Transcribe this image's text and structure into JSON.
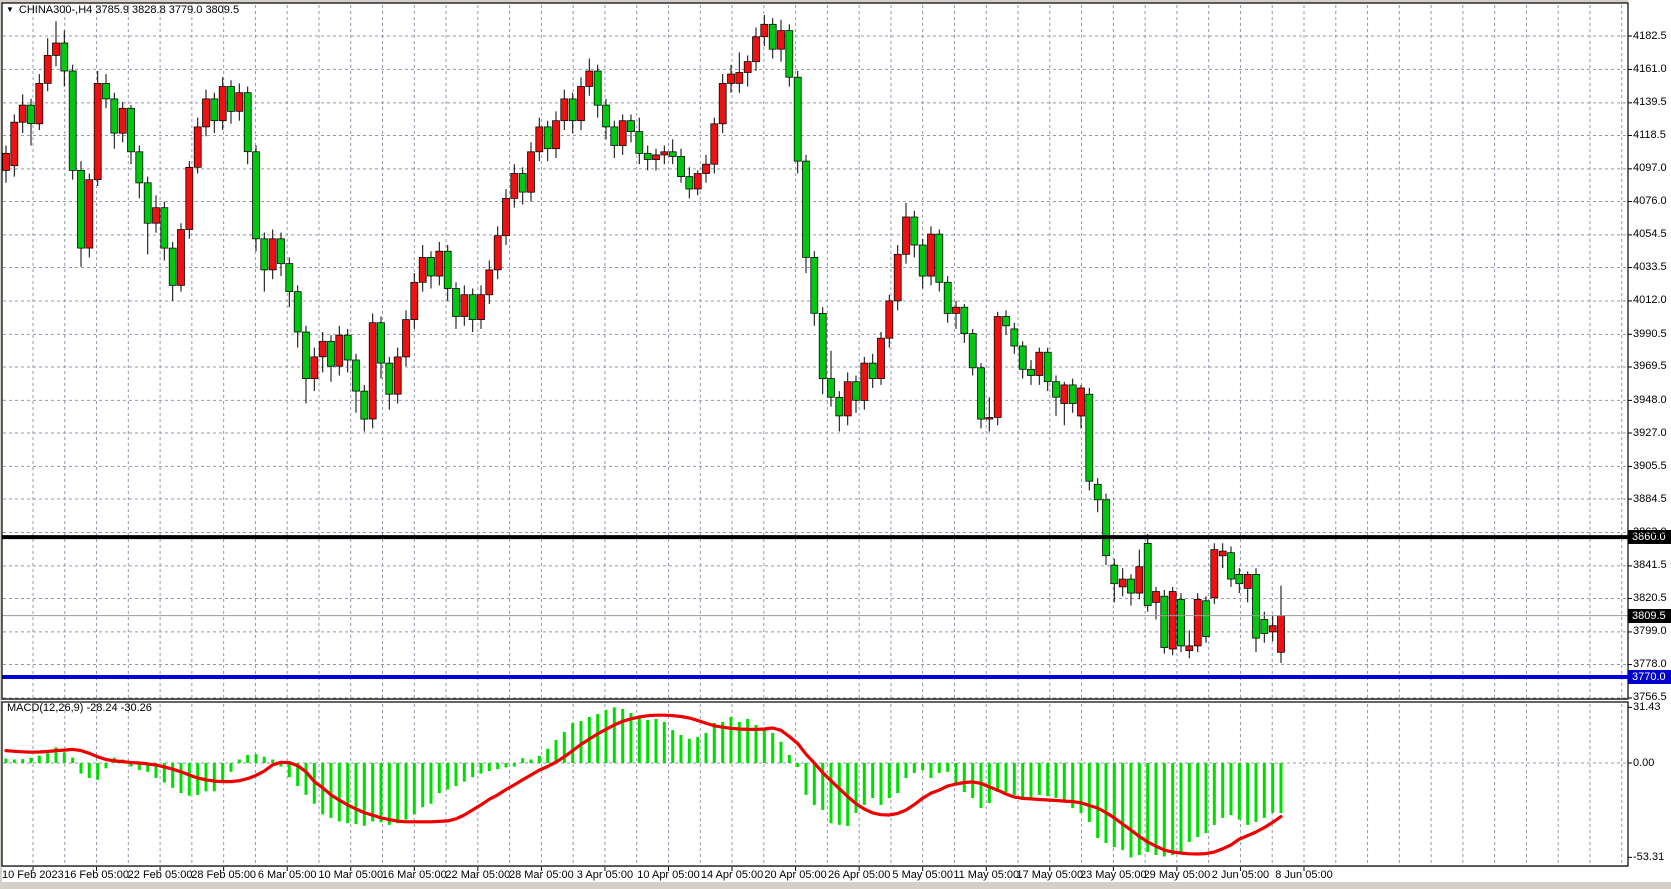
{
  "chart": {
    "title_text": "CHINA300-,H4  3785.9 3828.8 3779.0 3809.5",
    "symbol": "CHINA300-",
    "timeframe": "H4",
    "ohlc_display": {
      "open": "3785.9",
      "high": "3828.8",
      "low": "3779.0",
      "close": "3809.5"
    }
  },
  "macd": {
    "label": "MACD(12,26,9) -28.24 -30.26",
    "name": "MACD",
    "params": "12,26,9",
    "value": "-28.24",
    "signal": "-30.26",
    "scale_labels": {
      "max": "31.43",
      "zero": "0.00",
      "min": "-53.31"
    }
  },
  "levels": [
    {
      "label": "3860.0",
      "price": 3860.0,
      "line_color": "#000000",
      "badge_color": "#000000",
      "type": "horizontal-line"
    },
    {
      "label": "3809.5",
      "price": 3809.5,
      "line_color": "#9a9a9a",
      "badge_color": "#000000",
      "type": "bid-price-line"
    },
    {
      "label": "3770.0",
      "price": 3770.0,
      "line_color": "#0000d8",
      "badge_color": "#0000c8",
      "type": "horizontal-line"
    }
  ],
  "colors": {
    "background": "#ffffff",
    "chrome": "#d4d0c8",
    "grid": "#9099ad",
    "bull_candle": "#ed1111",
    "bear_candle": "#00c711",
    "wick": "#000000",
    "macd_histogram": "#00dd00",
    "macd_signal": "#ee0000",
    "border": "#000000",
    "text": "#000000"
  },
  "chart_data": {
    "type": "candlestick",
    "title": "CHINA300-,H4",
    "note_color_convention": "red = bullish, green = bearish",
    "grid": true,
    "price_axis_ticks": [
      4182.5,
      4161.0,
      4139.5,
      4118.5,
      4097.0,
      4076.0,
      4054.5,
      4033.5,
      4012.0,
      3990.5,
      3969.5,
      3948.0,
      3927.0,
      3905.5,
      3884.5,
      3863.0,
      3841.5,
      3820.5,
      3799.0,
      3778.0,
      3756.5
    ],
    "ylim_price": [
      3756.5,
      4182.5
    ],
    "time_axis_ticks": [
      "10 Feb 2023",
      "16 Feb 05:00",
      "22 Feb 05:00",
      "28 Feb 05:00",
      "6 Mar 05:00",
      "10 Mar 05:00",
      "16 Mar 05:00",
      "22 Mar 05:00",
      "28 Mar 05:00",
      "3 Apr 05:00",
      "10 Apr 05:00",
      "14 Apr 05:00",
      "20 Apr 05:00",
      "26 Apr 05:00",
      "5 May 05:00",
      "11 May 05:00",
      "17 May 05:00",
      "23 May 05:00",
      "29 May 05:00",
      "2 Jun 05:00",
      "8 Jun 05:00"
    ],
    "candles_ohlc": [
      [
        4096,
        4112,
        4088,
        4107
      ],
      [
        4099,
        4132,
        4092,
        4127
      ],
      [
        4127,
        4145,
        4120,
        4138
      ],
      [
        4138,
        4142,
        4112,
        4126
      ],
      [
        4126,
        4158,
        4122,
        4152
      ],
      [
        4152,
        4181,
        4147,
        4170
      ],
      [
        4170,
        4192,
        4163,
        4178
      ],
      [
        4178,
        4186,
        4150,
        4160
      ],
      [
        4160,
        4164,
        4090,
        4096
      ],
      [
        4096,
        4102,
        4034,
        4046
      ],
      [
        4046,
        4094,
        4040,
        4090
      ],
      [
        4090,
        4160,
        4086,
        4152
      ],
      [
        4152,
        4158,
        4136,
        4142
      ],
      [
        4142,
        4146,
        4110,
        4120
      ],
      [
        4120,
        4140,
        4114,
        4136
      ],
      [
        4136,
        4138,
        4100,
        4108
      ],
      [
        4108,
        4112,
        4078,
        4088
      ],
      [
        4088,
        4092,
        4042,
        4062
      ],
      [
        4062,
        4080,
        4056,
        4072
      ],
      [
        4072,
        4076,
        4038,
        4046
      ],
      [
        4046,
        4050,
        4012,
        4022
      ],
      [
        4022,
        4062,
        4018,
        4058
      ],
      [
        4058,
        4102,
        4052,
        4098
      ],
      [
        4098,
        4130,
        4094,
        4124
      ],
      [
        4124,
        4148,
        4118,
        4142
      ],
      [
        4142,
        4146,
        4120,
        4128
      ],
      [
        4128,
        4156,
        4122,
        4150
      ],
      [
        4150,
        4154,
        4126,
        4134
      ],
      [
        4134,
        4152,
        4128,
        4146
      ],
      [
        4146,
        4150,
        4100,
        4108
      ],
      [
        4108,
        4112,
        4044,
        4052
      ],
      [
        4052,
        4056,
        4018,
        4032
      ],
      [
        4032,
        4058,
        4026,
        4052
      ],
      [
        4052,
        4056,
        4028,
        4036
      ],
      [
        4036,
        4040,
        4008,
        4018
      ],
      [
        4018,
        4022,
        3982,
        3992
      ],
      [
        3992,
        3996,
        3946,
        3962
      ],
      [
        3962,
        3982,
        3954,
        3976
      ],
      [
        3976,
        3992,
        3966,
        3986
      ],
      [
        3986,
        3990,
        3960,
        3970
      ],
      [
        3970,
        3996,
        3964,
        3990
      ],
      [
        3990,
        3994,
        3966,
        3974
      ],
      [
        3974,
        3978,
        3940,
        3954
      ],
      [
        3954,
        3958,
        3928,
        3936
      ],
      [
        3936,
        4004,
        3930,
        3998
      ],
      [
        3998,
        4002,
        3962,
        3972
      ],
      [
        3972,
        3976,
        3942,
        3952
      ],
      [
        3952,
        3982,
        3946,
        3976
      ],
      [
        3976,
        4006,
        3970,
        4000
      ],
      [
        4000,
        4030,
        3994,
        4024
      ],
      [
        4024,
        4048,
        4018,
        4040
      ],
      [
        4040,
        4044,
        4020,
        4028
      ],
      [
        4028,
        4050,
        4022,
        4044
      ],
      [
        4044,
        4048,
        4012,
        4020
      ],
      [
        4020,
        4024,
        3994,
        4002
      ],
      [
        4002,
        4022,
        3996,
        4016
      ],
      [
        4016,
        4020,
        3992,
        4000
      ],
      [
        4000,
        4022,
        3994,
        4016
      ],
      [
        4016,
        4038,
        4010,
        4032
      ],
      [
        4032,
        4060,
        4026,
        4054
      ],
      [
        4054,
        4084,
        4048,
        4078
      ],
      [
        4078,
        4100,
        4072,
        4094
      ],
      [
        4094,
        4098,
        4074,
        4082
      ],
      [
        4082,
        4114,
        4076,
        4108
      ],
      [
        4108,
        4130,
        4102,
        4124
      ],
      [
        4124,
        4128,
        4102,
        4110
      ],
      [
        4110,
        4134,
        4104,
        4128
      ],
      [
        4128,
        4148,
        4122,
        4142
      ],
      [
        4142,
        4146,
        4120,
        4128
      ],
      [
        4128,
        4156,
        4122,
        4150
      ],
      [
        4150,
        4168,
        4144,
        4160
      ],
      [
        4160,
        4164,
        4130,
        4138
      ],
      [
        4138,
        4142,
        4116,
        4124
      ],
      [
        4124,
        4128,
        4104,
        4112
      ],
      [
        4112,
        4132,
        4106,
        4128
      ],
      [
        4128,
        4132,
        4114,
        4121
      ],
      [
        4121,
        4130,
        4100,
        4107
      ],
      [
        4107,
        4112,
        4096,
        4103
      ],
      [
        4103,
        4110,
        4096,
        4106
      ],
      [
        4106,
        4112,
        4100,
        4108
      ],
      [
        4108,
        4116,
        4100,
        4105
      ],
      [
        4105,
        4110,
        4088,
        4092
      ],
      [
        4092,
        4098,
        4078,
        4084
      ],
      [
        4084,
        4096,
        4080,
        4094
      ],
      [
        4094,
        4106,
        4088,
        4100
      ],
      [
        4100,
        4130,
        4094,
        4126
      ],
      [
        4126,
        4158,
        4120,
        4152
      ],
      [
        4152,
        4164,
        4146,
        4158
      ],
      [
        4152,
        4172,
        4146,
        4159
      ],
      [
        4159,
        4170,
        4150,
        4166
      ],
      [
        4166,
        4188,
        4160,
        4182
      ],
      [
        4182,
        4196,
        4176,
        4190
      ],
      [
        4190,
        4194,
        4168,
        4174
      ],
      [
        4174,
        4193,
        4166,
        4186
      ],
      [
        4186,
        4190,
        4150,
        4156
      ],
      [
        4156,
        4160,
        4094,
        4102
      ],
      [
        4102,
        4106,
        4030,
        4040
      ],
      [
        4040,
        4044,
        3996,
        4004
      ],
      [
        4004,
        4008,
        3952,
        3962
      ],
      [
        3962,
        3980,
        3944,
        3950
      ],
      [
        3950,
        3954,
        3928,
        3938
      ],
      [
        3938,
        3966,
        3932,
        3960
      ],
      [
        3960,
        3964,
        3940,
        3948
      ],
      [
        3948,
        3976,
        3942,
        3972
      ],
      [
        3972,
        3978,
        3956,
        3962
      ],
      [
        3962,
        3992,
        3958,
        3988
      ],
      [
        3988,
        4016,
        3982,
        4012
      ],
      [
        4012,
        4048,
        4006,
        4042
      ],
      [
        4042,
        4075,
        4036,
        4066
      ],
      [
        4066,
        4070,
        4040,
        4048
      ],
      [
        4048,
        4052,
        4020,
        4028
      ],
      [
        4028,
        4060,
        4022,
        4055
      ],
      [
        4055,
        4058,
        4018,
        4024
      ],
      [
        4024,
        4028,
        3998,
        4004
      ],
      [
        4004,
        4012,
        3994,
        4008
      ],
      [
        4008,
        4010,
        3985,
        3991
      ],
      [
        3991,
        3994,
        3964,
        3969
      ],
      [
        3969,
        3972,
        3930,
        3936
      ],
      [
        3936,
        3950,
        3928,
        3937
      ],
      [
        3937,
        4005,
        3932,
        4002
      ],
      [
        4002,
        4006,
        3990,
        3996
      ],
      [
        3994,
        3998,
        3978,
        3983
      ],
      [
        3983,
        3986,
        3962,
        3968
      ],
      [
        3968,
        3974,
        3958,
        3964
      ],
      [
        3964,
        3982,
        3958,
        3979
      ],
      [
        3979,
        3982,
        3954,
        3960
      ],
      [
        3960,
        3964,
        3938,
        3950
      ],
      [
        3946,
        3960,
        3932,
        3958
      ],
      [
        3958,
        3962,
        3940,
        3946
      ],
      [
        3938,
        3958,
        3930,
        3956
      ],
      [
        3952,
        3956,
        3890,
        3896
      ],
      [
        3894,
        3898,
        3876,
        3884
      ],
      [
        3884,
        3888,
        3842,
        3848
      ],
      [
        3842,
        3846,
        3818,
        3830
      ],
      [
        3828,
        3840,
        3822,
        3833
      ],
      [
        3833,
        3836,
        3816,
        3824
      ],
      [
        3824,
        3852,
        3820,
        3841
      ],
      [
        3856,
        3862,
        3812,
        3816
      ],
      [
        3818,
        3828,
        3807,
        3825
      ],
      [
        3822,
        3826,
        3785,
        3789
      ],
      [
        3788,
        3828,
        3784,
        3825
      ],
      [
        3820,
        3824,
        3786,
        3790
      ],
      [
        3787,
        3800,
        3782,
        3790
      ],
      [
        3790,
        3824,
        3786,
        3820
      ],
      [
        3819,
        3822,
        3792,
        3796
      ],
      [
        3821,
        3856,
        3817,
        3852
      ],
      [
        3848,
        3856,
        3840,
        3851
      ],
      [
        3850,
        3854,
        3828,
        3833
      ],
      [
        3836,
        3840,
        3824,
        3830
      ],
      [
        3827,
        3838,
        3818,
        3836
      ],
      [
        3836,
        3840,
        3786,
        3795
      ],
      [
        3807,
        3812,
        3792,
        3798
      ],
      [
        3799,
        3810,
        3793,
        3803
      ],
      [
        3785.9,
        3828.8,
        3779.0,
        3809.5
      ]
    ],
    "indicator": {
      "name": "MACD",
      "params": [
        12,
        26,
        9
      ],
      "ylim": [
        -53.31,
        31.43
      ],
      "axis_ticks": [
        31.43,
        0.0,
        -53.31
      ],
      "histogram": [
        2.5,
        2,
        2.2,
        3,
        4.2,
        5.5,
        8.8,
        6,
        3,
        -6,
        -8.5,
        -9.5,
        -3,
        3,
        2,
        -2,
        -4,
        -5,
        -8.5,
        -11,
        -14,
        -17,
        -18.5,
        -18,
        -16,
        -16,
        -10,
        -5,
        2,
        4.5,
        5,
        3.5,
        2,
        -2,
        -8,
        -13,
        -18,
        -23,
        -29,
        -31,
        -33,
        -34,
        -34.5,
        -35.5,
        -33,
        -33.5,
        -35,
        -34,
        -32,
        -29,
        -25,
        -23,
        -17,
        -15,
        -13,
        -10.5,
        -8,
        -6,
        -4.5,
        -3.5,
        -2.5,
        -2,
        2.7,
        2,
        4,
        8,
        13,
        17.5,
        22.6,
        23.7,
        26,
        27.7,
        30,
        31.43,
        30.5,
        28.3,
        26.6,
        24.3,
        24.9,
        23.2,
        18.6,
        15.8,
        13.6,
        14.7,
        17,
        22.6,
        23.2,
        26,
        23.2,
        24.9,
        21.5,
        18.6,
        17,
        12,
        4.5,
        -2.3,
        -18,
        -23.7,
        -26.5,
        -34,
        -35,
        -35.6,
        -28.2,
        -23.7,
        -19.8,
        -23.7,
        -19.8,
        -17,
        -8.5,
        -5.6,
        -4,
        -8.5,
        -5.6,
        -5,
        -11.3,
        -16.4,
        -19.8,
        -25.4,
        -22.6,
        -16.4,
        -16.4,
        -18,
        -19.8,
        -19.8,
        -18,
        -18.7,
        -19.8,
        -22,
        -25.4,
        -28.2,
        -33.3,
        -42.4,
        -45.2,
        -47.5,
        -49.2,
        -53.31,
        -52,
        -50.3,
        -52,
        -52.8,
        -52,
        -50.3,
        -44.6,
        -41.8,
        -39.6,
        -35,
        -31,
        -29.4,
        -32,
        -35,
        -33.3,
        -31,
        -28.2,
        -28.24
      ],
      "signal": [
        7,
        6.6,
        6.3,
        6.1,
        6.2,
        6.5,
        7,
        7.3,
        7.7,
        7,
        5.5,
        3.5,
        2,
        1.2,
        0.8,
        0.3,
        0,
        -0.5,
        -1.2,
        -2.2,
        -3.5,
        -5,
        -6.8,
        -8.5,
        -9.5,
        -10.2,
        -10.5,
        -10.5,
        -10,
        -8.8,
        -7,
        -4.5,
        -1,
        0.4,
        0.2,
        -1.5,
        -5,
        -10.5,
        -14,
        -18,
        -21,
        -23.7,
        -26,
        -28,
        -29.5,
        -31,
        -32,
        -32.8,
        -33.2,
        -33.2,
        -33.2,
        -33.2,
        -33,
        -32.7,
        -31.5,
        -29.4,
        -26.5,
        -23.7,
        -20.5,
        -18,
        -15,
        -12.4,
        -9.5,
        -6.8,
        -4,
        -2,
        0.5,
        3.5,
        7,
        10.5,
        13.5,
        16.5,
        19,
        21.5,
        23.5,
        25,
        26,
        26.7,
        27,
        27,
        26.8,
        26.3,
        25.4,
        24,
        22.5,
        21,
        20.2,
        19.6,
        19.2,
        19,
        19,
        19.2,
        19.8,
        18.5,
        15,
        11,
        5,
        0,
        -5.5,
        -10,
        -14.5,
        -19,
        -23,
        -26,
        -28.2,
        -29.2,
        -29.4,
        -28.5,
        -26.6,
        -23.5,
        -19.9,
        -17,
        -15.3,
        -13,
        -11.9,
        -11,
        -10.7,
        -11.5,
        -13.5,
        -15.3,
        -17.5,
        -19.2,
        -20,
        -20.3,
        -20.6,
        -20.9,
        -21.2,
        -21.5,
        -21.8,
        -22.5,
        -24,
        -25.4,
        -28,
        -31,
        -34.5,
        -37.9,
        -41.5,
        -44.6,
        -47,
        -49.2,
        -50.3,
        -50.9,
        -51.3,
        -51.4,
        -51.2,
        -50.3,
        -48.5,
        -46.3,
        -43,
        -41,
        -39,
        -36.5,
        -33.5,
        -30.26
      ]
    },
    "horizontal_lines": [
      3860.0,
      3770.0
    ],
    "current_bid": 3809.5
  }
}
